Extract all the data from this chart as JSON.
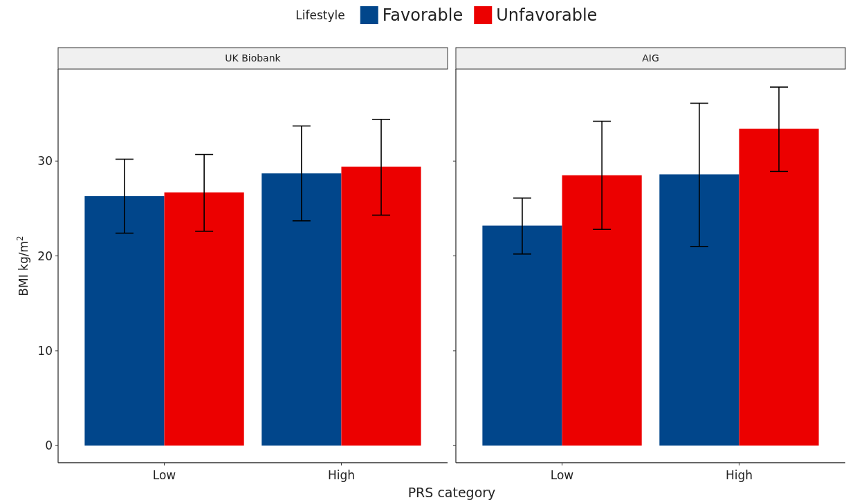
{
  "chart_data": [
    {
      "type": "bar",
      "title": "UK Biobank",
      "xlabel": "PRS category",
      "ylabel": "BMI kg/m$^{2}$",
      "legend_title": "Lifestyle",
      "legend": "top",
      "categories": [
        "Low",
        "High"
      ],
      "ylim": [
        -1.8,
        39.7
      ],
      "yticks": [
        0,
        10,
        20,
        30
      ],
      "grid": false,
      "series": [
        {
          "name": "Favorable",
          "color": "#01468b",
          "values": [
            26.3,
            28.7
          ],
          "errors": [
            [
              22.4,
              30.2
            ],
            [
              23.7,
              33.7
            ]
          ]
        },
        {
          "name": "Unfavorable",
          "color": "#ec0000",
          "values": [
            26.7,
            29.4
          ],
          "errors": [
            [
              22.6,
              30.7
            ],
            [
              24.3,
              34.4
            ]
          ]
        }
      ]
    },
    {
      "type": "bar",
      "title": "AIG",
      "categories": [
        "Low",
        "High"
      ],
      "ylim": [
        -1.8,
        39.7
      ],
      "yticks": [
        0,
        10,
        20,
        30
      ],
      "grid": false,
      "tick_labels": "x",
      "series": [
        {
          "color": "#01468b",
          "values": [
            23.2,
            28.6
          ],
          "errors": [
            [
              20.2,
              26.1
            ],
            [
              21.0,
              36.1
            ]
          ]
        },
        {
          "color": "#ec0000",
          "values": [
            28.5,
            33.4
          ],
          "errors": [
            [
              22.8,
              34.2
            ],
            [
              28.9,
              37.8
            ]
          ]
        }
      ]
    }
  ]
}
